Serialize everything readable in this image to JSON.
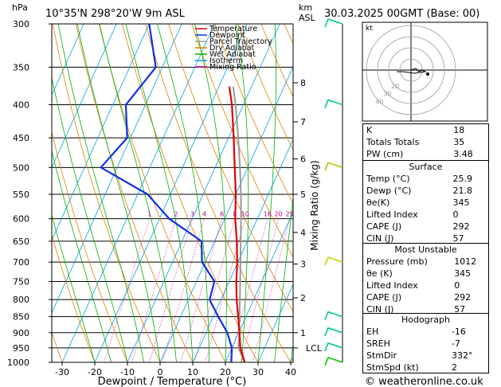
{
  "header": {
    "location": "10°35'N  298°20'W  9m  ASL",
    "datetime": "30.03.2025  00GMT  (Base: 00)",
    "left_unit": "hPa",
    "right_unit_km": "km",
    "right_unit_asl": "ASL"
  },
  "chart_data": {
    "type": "skew-t",
    "xlabel": "Dewpoint / Temperature (°C)",
    "ylabel_right": "Mixing Ratio (g/kg)",
    "xlim": [
      -35,
      40
    ],
    "ylim_hpa": [
      1000,
      300
    ],
    "x_ticks": [
      "-30",
      "-20",
      "-10",
      "0",
      "10",
      "20",
      "30",
      "40"
    ],
    "pressure_levels": [
      300,
      350,
      400,
      450,
      500,
      550,
      600,
      650,
      700,
      750,
      800,
      850,
      900,
      950,
      1000
    ],
    "height_km_ticks": [
      {
        "label": "8",
        "p": 370
      },
      {
        "label": "7",
        "p": 425
      },
      {
        "label": "6",
        "p": 485
      },
      {
        "label": "5",
        "p": 550
      },
      {
        "label": "4",
        "p": 630
      },
      {
        "label": "3",
        "p": 705
      },
      {
        "label": "2",
        "p": 795
      },
      {
        "label": "1",
        "p": 900
      },
      {
        "label": "LCL",
        "p": 950
      }
    ],
    "mixing_ratio_labels": [
      "1",
      "2",
      "3",
      "4",
      "6",
      "8",
      "10",
      "16",
      "20",
      "25"
    ],
    "mixing_ratio_values": [
      1,
      2,
      3,
      4,
      6,
      8,
      10,
      16,
      20,
      25
    ],
    "legend": [
      {
        "name": "Temperature",
        "color": "#e00000"
      },
      {
        "name": "Dewpoint",
        "color": "#1030e0"
      },
      {
        "name": "Parcel Trajectory",
        "color": "#999999"
      },
      {
        "name": "Dry Adiabat",
        "color": "#e08000"
      },
      {
        "name": "Wet Adiabat",
        "color": "#00b000"
      },
      {
        "name": "Isotherm",
        "color": "#00a0e0"
      },
      {
        "name": "Mixing Ratio",
        "color": "#c0008c"
      }
    ],
    "temperature": [
      {
        "p": 1000,
        "t": 25.9
      },
      {
        "p": 950,
        "t": 22.6
      },
      {
        "p": 900,
        "t": 20.2
      },
      {
        "p": 850,
        "t": 17.6
      },
      {
        "p": 800,
        "t": 14.8
      },
      {
        "p": 750,
        "t": 12.2
      },
      {
        "p": 700,
        "t": 9.8
      },
      {
        "p": 650,
        "t": 6.8
      },
      {
        "p": 600,
        "t": 3.2
      },
      {
        "p": 550,
        "t": 0.0
      },
      {
        "p": 500,
        "t": -4.0
      },
      {
        "p": 450,
        "t": -8.4
      },
      {
        "p": 400,
        "t": -13.5
      },
      {
        "p": 375,
        "t": -16.8
      }
    ],
    "dewpoint": [
      {
        "p": 1000,
        "t": 21.8
      },
      {
        "p": 950,
        "t": 20.0
      },
      {
        "p": 900,
        "t": 16.5
      },
      {
        "p": 850,
        "t": 11.5
      },
      {
        "p": 800,
        "t": 6.5
      },
      {
        "p": 750,
        "t": 5.5
      },
      {
        "p": 700,
        "t": -1.0
      },
      {
        "p": 650,
        "t": -4.0
      },
      {
        "p": 600,
        "t": -17.0
      },
      {
        "p": 550,
        "t": -27.0
      },
      {
        "p": 500,
        "t": -45.0
      },
      {
        "p": 450,
        "t": -41.0
      },
      {
        "p": 400,
        "t": -46.0
      },
      {
        "p": 350,
        "t": -42.0
      },
      {
        "p": 300,
        "t": -50.0
      }
    ],
    "parcel": [
      {
        "p": 1000,
        "t": 25.9
      },
      {
        "p": 950,
        "t": 22.0
      },
      {
        "p": 900,
        "t": 20.2
      },
      {
        "p": 850,
        "t": 18.0
      },
      {
        "p": 800,
        "t": 15.8
      },
      {
        "p": 750,
        "t": 13.4
      },
      {
        "p": 700,
        "t": 10.8
      },
      {
        "p": 650,
        "t": 8.0
      },
      {
        "p": 600,
        "t": 5.0
      },
      {
        "p": 550,
        "t": 1.6
      },
      {
        "p": 500,
        "t": -2.4
      },
      {
        "p": 450,
        "t": -7.0
      },
      {
        "p": 400,
        "t": -12.4
      },
      {
        "p": 375,
        "t": -15.6
      }
    ],
    "wind_barbs": [
      {
        "p": 300,
        "color": "#00cc88"
      },
      {
        "p": 400,
        "color": "#00cc88"
      },
      {
        "p": 500,
        "color": "#aacc00"
      },
      {
        "p": 700,
        "color": "#cccc00"
      },
      {
        "p": 850,
        "color": "#00cc88"
      },
      {
        "p": 900,
        "color": "#00cc88"
      },
      {
        "p": 950,
        "color": "#00cc88"
      },
      {
        "p": 1000,
        "color": "#00cc00"
      }
    ]
  },
  "hodograph": {
    "unit": "kt",
    "rings": [
      "10",
      "20",
      "30",
      "40"
    ],
    "ring_labels_shown": [
      "20",
      "30",
      "40"
    ]
  },
  "indices": {
    "basic": [
      {
        "label": "K",
        "value": "18"
      },
      {
        "label": "Totals Totals",
        "value": "35"
      },
      {
        "label": "PW (cm)",
        "value": "3.48"
      }
    ],
    "surface_title": "Surface",
    "surface": [
      {
        "label": "Temp (°C)",
        "value": "25.9"
      },
      {
        "label": "Dewp (°C)",
        "value": "21.8"
      },
      {
        "label": "θe(K)",
        "value": "345"
      },
      {
        "label": "Lifted Index",
        "value": "0"
      },
      {
        "label": "CAPE (J)",
        "value": "292"
      },
      {
        "label": "CIN (J)",
        "value": "57"
      }
    ],
    "unstable_title": "Most Unstable",
    "unstable": [
      {
        "label": "Pressure (mb)",
        "value": "1012"
      },
      {
        "label": "θe (K)",
        "value": "345"
      },
      {
        "label": "Lifted Index",
        "value": "0"
      },
      {
        "label": "CAPE (J)",
        "value": "292"
      },
      {
        "label": "CIN (J)",
        "value": "57"
      }
    ],
    "hodo_title": "Hodograph",
    "hodo": [
      {
        "label": "EH",
        "value": "-16"
      },
      {
        "label": "SREH",
        "value": "-7"
      },
      {
        "label": "StmDir",
        "value": "332°"
      },
      {
        "label": "StmSpd (kt)",
        "value": "2"
      }
    ]
  },
  "footer": {
    "copyright": "© weatheronline.co.uk"
  }
}
